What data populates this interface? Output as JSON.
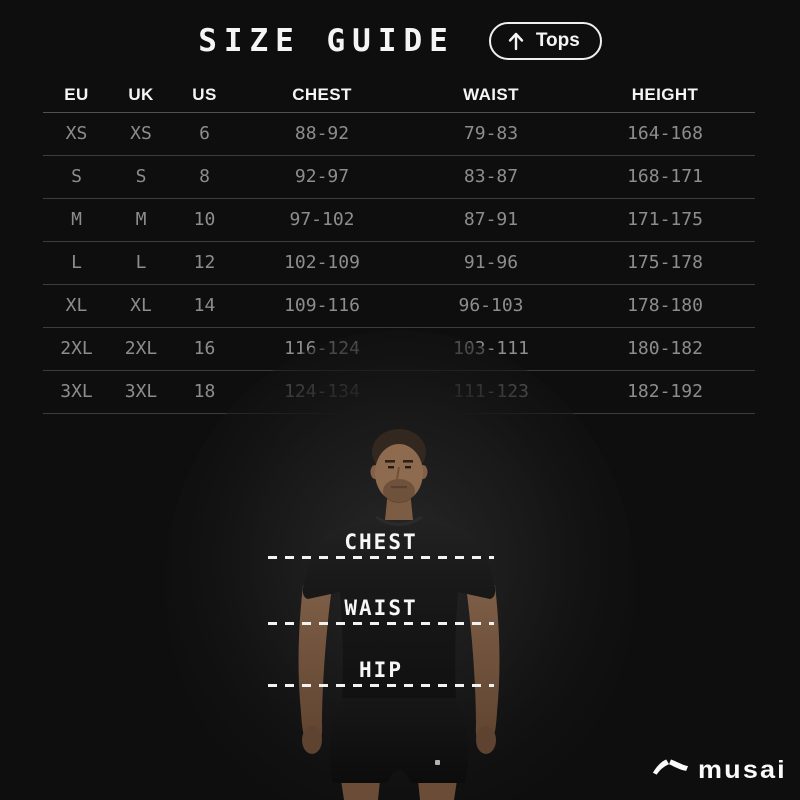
{
  "header": {
    "title": "SIZE GUIDE",
    "category": {
      "label": "Tops",
      "icon": "arrow-up-icon"
    }
  },
  "size_table": {
    "columns": [
      "EU",
      "UK",
      "US",
      "CHEST",
      "WAIST",
      "HEIGHT"
    ],
    "rows": [
      [
        "XS",
        "XS",
        "6",
        "88-92",
        "79-83",
        "164-168"
      ],
      [
        "S",
        "S",
        "8",
        "92-97",
        "83-87",
        "168-171"
      ],
      [
        "M",
        "M",
        "10",
        "97-102",
        "87-91",
        "171-175"
      ],
      [
        "L",
        "L",
        "12",
        "102-109",
        "91-96",
        "175-178"
      ],
      [
        "XL",
        "XL",
        "14",
        "109-116",
        "96-103",
        "178-180"
      ],
      [
        "2XL",
        "2XL",
        "16",
        "116-124",
        "103-111",
        "180-182"
      ],
      [
        "3XL",
        "3XL",
        "18",
        "124-134",
        "111-123",
        "182-192"
      ]
    ]
  },
  "measurements": [
    {
      "label": "CHEST"
    },
    {
      "label": "WAIST"
    },
    {
      "label": "HIP"
    }
  ],
  "brand": {
    "name": "musai",
    "icon": "musai-logo-icon"
  },
  "colors": {
    "background": "#0e0e0e",
    "text_primary": "#f5f5f5",
    "text_secondary": "#8d8d8d",
    "divider": "#3c3c3c",
    "dash_line": "#f2f2f2"
  }
}
